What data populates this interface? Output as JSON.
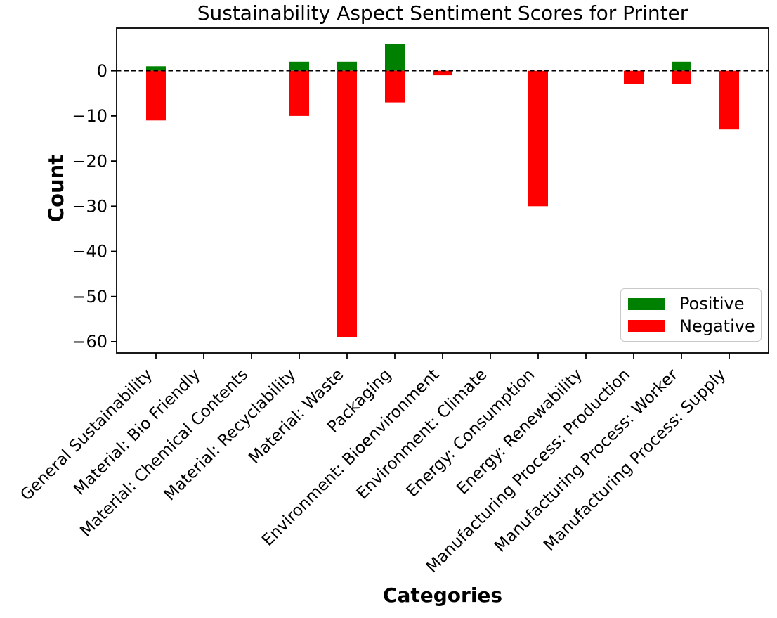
{
  "figure": {
    "title": "Sustainability Aspect Sentiment Scores for Printer",
    "xlabel": "Categories",
    "ylabel": "Count",
    "background_color": "#ffffff",
    "legend": {
      "position": "lower right",
      "entries": [
        {
          "label": "Positive",
          "color": "#008000"
        },
        {
          "label": "Negative",
          "color": "#ff0000"
        }
      ]
    }
  },
  "chart_data": {
    "type": "bar",
    "title": "Sustainability Aspect Sentiment Scores for Printer",
    "xlabel": "Categories",
    "ylabel": "Count",
    "categories": [
      "General Sustainability",
      "Material: Bio Friendly",
      "Material: Chemical Contents",
      "Material: Recyclability",
      "Material: Waste",
      "Packaging",
      "Environment: Bioenvironment",
      "Environment: Climate",
      "Energy: Consumption",
      "Energy: Renewability",
      "Manufacturing Process: Production",
      "Manufacturing Process: Worker",
      "Manufacturing Process: Supply"
    ],
    "series": [
      {
        "name": "Positive",
        "color": "#008000",
        "values": [
          1,
          0,
          0,
          2,
          2,
          6,
          0,
          0,
          0,
          0,
          0,
          2,
          0
        ]
      },
      {
        "name": "Negative",
        "color": "#ff0000",
        "values": [
          -11,
          0,
          0,
          -10,
          -59,
          -7,
          -1,
          0,
          -30,
          0,
          -3,
          -3,
          -13
        ]
      }
    ],
    "yticks": [
      0,
      -10,
      -20,
      -30,
      -40,
      -50,
      -60
    ],
    "ylim": [
      -62.5,
      9.45
    ],
    "zero_line": {
      "y": 0,
      "style": "dashed",
      "color": "#000000"
    },
    "grid": false,
    "xtick_rotation_deg": 45,
    "legend_position": "lower right"
  }
}
